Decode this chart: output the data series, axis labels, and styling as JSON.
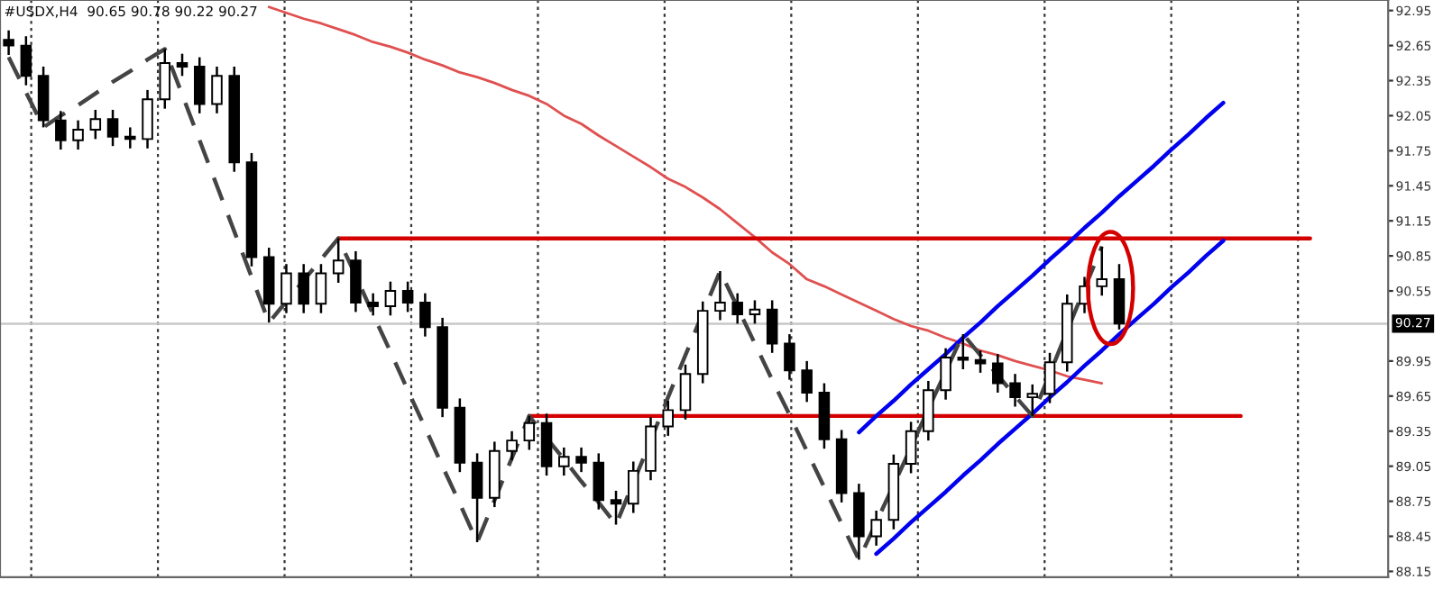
{
  "chart_data": {
    "type": "candlestick",
    "title": "#USDX,H4  90.65 90.78 90.22 90.27",
    "categories": [
      null,
      null,
      null,
      null,
      null,
      null,
      null,
      null,
      null,
      null,
      null,
      null,
      null,
      null,
      null,
      null,
      null,
      null,
      null,
      null,
      null,
      null,
      null,
      null,
      null,
      null,
      null,
      null,
      null,
      null,
      null,
      null,
      null,
      null,
      null,
      null,
      null,
      null,
      null,
      null,
      null,
      null,
      null,
      null,
      null,
      null,
      null,
      null,
      null,
      null,
      null,
      null,
      null,
      null,
      null,
      null,
      null,
      null,
      null,
      null,
      null,
      null,
      null,
      null,
      null,
      null,
      null,
      null,
      null,
      null,
      null,
      null,
      null,
      null,
      null,
      null,
      null,
      null,
      null,
      null
    ],
    "color": "#000000",
    "ohlc": [
      [
        92.7,
        92.78,
        92.57,
        92.65
      ],
      [
        92.65,
        92.73,
        92.31,
        92.39
      ],
      [
        92.39,
        92.47,
        91.95,
        92.01
      ],
      [
        92.01,
        92.09,
        91.76,
        91.84
      ],
      [
        91.84,
        92.01,
        91.76,
        91.93
      ],
      [
        91.93,
        92.1,
        91.85,
        92.02
      ],
      [
        92.02,
        92.1,
        91.79,
        91.87
      ],
      [
        91.87,
        91.95,
        91.77,
        91.85
      ],
      [
        91.85,
        92.27,
        91.77,
        92.19
      ],
      [
        92.19,
        92.62,
        92.11,
        92.5
      ],
      [
        92.5,
        92.58,
        92.39,
        92.47
      ],
      [
        92.47,
        92.55,
        92.07,
        92.15
      ],
      [
        92.15,
        92.47,
        92.07,
        92.39
      ],
      [
        92.39,
        92.47,
        91.57,
        91.65
      ],
      [
        91.65,
        91.73,
        90.76,
        90.84
      ],
      [
        90.84,
        90.92,
        90.28,
        90.44
      ],
      [
        90.44,
        90.78,
        90.36,
        90.7
      ],
      [
        90.7,
        90.78,
        90.36,
        90.44
      ],
      [
        90.44,
        90.78,
        90.36,
        90.7
      ],
      [
        90.7,
        91.0,
        90.62,
        90.81
      ],
      [
        90.81,
        90.89,
        90.37,
        90.45
      ],
      [
        90.45,
        90.53,
        90.34,
        90.42
      ],
      [
        90.42,
        90.63,
        90.34,
        90.55
      ],
      [
        90.55,
        90.63,
        90.37,
        90.45
      ],
      [
        90.45,
        90.53,
        90.16,
        90.24
      ],
      [
        90.24,
        90.32,
        89.47,
        89.55
      ],
      [
        89.55,
        89.63,
        89.0,
        89.08
      ],
      [
        89.08,
        89.16,
        88.4,
        88.78
      ],
      [
        88.78,
        89.26,
        88.7,
        89.18
      ],
      [
        89.18,
        89.35,
        89.1,
        89.27
      ],
      [
        89.27,
        89.48,
        89.19,
        89.42
      ],
      [
        89.42,
        89.5,
        88.97,
        89.05
      ],
      [
        89.05,
        89.21,
        88.97,
        89.13
      ],
      [
        89.13,
        89.21,
        89.0,
        89.08
      ],
      [
        89.08,
        89.16,
        88.68,
        88.76
      ],
      [
        88.76,
        88.84,
        88.55,
        88.73
      ],
      [
        88.73,
        89.09,
        88.65,
        89.01
      ],
      [
        89.01,
        89.47,
        88.93,
        89.39
      ],
      [
        89.39,
        89.61,
        89.31,
        89.53
      ],
      [
        89.53,
        89.92,
        89.45,
        89.84
      ],
      [
        89.84,
        90.46,
        89.76,
        90.38
      ],
      [
        90.38,
        90.72,
        90.3,
        90.45
      ],
      [
        90.45,
        90.53,
        90.27,
        90.35
      ],
      [
        90.35,
        90.47,
        90.27,
        90.39
      ],
      [
        90.39,
        90.47,
        90.02,
        90.1
      ],
      [
        90.1,
        90.18,
        89.79,
        89.87
      ],
      [
        89.87,
        89.95,
        89.6,
        89.68
      ],
      [
        89.68,
        89.76,
        89.2,
        89.28
      ],
      [
        89.28,
        89.36,
        88.74,
        88.82
      ],
      [
        88.82,
        88.9,
        88.25,
        88.45
      ],
      [
        88.45,
        88.67,
        88.37,
        88.59
      ],
      [
        88.59,
        89.15,
        88.51,
        89.07
      ],
      [
        89.07,
        89.43,
        88.99,
        89.35
      ],
      [
        89.35,
        89.78,
        89.27,
        89.7
      ],
      [
        89.7,
        90.06,
        89.62,
        89.98
      ],
      [
        89.98,
        90.18,
        89.88,
        89.96
      ],
      [
        89.96,
        90.04,
        89.85,
        89.93
      ],
      [
        89.93,
        90.01,
        89.68,
        89.76
      ],
      [
        89.76,
        89.84,
        89.56,
        89.64
      ],
      [
        89.64,
        89.75,
        89.48,
        89.67
      ],
      [
        89.67,
        90.02,
        89.59,
        89.94
      ],
      [
        89.94,
        90.52,
        89.86,
        90.44
      ],
      [
        90.44,
        90.67,
        90.36,
        90.59
      ],
      [
        90.59,
        90.93,
        90.51,
        90.65
      ],
      [
        90.65,
        90.78,
        90.22,
        90.27
      ],
      null,
      null,
      null,
      null,
      null,
      null,
      null,
      null,
      null,
      null,
      null,
      null,
      null,
      null,
      null
    ],
    "series": [
      {
        "type": "line",
        "color": "#e05050",
        "line_style": "solid",
        "values": [
          null,
          null,
          null,
          null,
          null,
          null,
          null,
          null,
          null,
          null,
          null,
          null,
          null,
          null,
          null,
          92.98,
          92.93,
          92.88,
          92.84,
          92.79,
          92.74,
          92.68,
          92.64,
          92.59,
          92.53,
          92.48,
          92.42,
          92.38,
          92.33,
          92.27,
          92.22,
          92.15,
          92.05,
          91.98,
          91.88,
          91.79,
          91.7,
          91.61,
          91.51,
          91.44,
          91.35,
          91.25,
          91.13,
          91.01,
          90.88,
          90.78,
          90.65,
          90.59,
          90.52,
          90.45,
          90.38,
          90.31,
          90.25,
          90.21,
          90.15,
          90.1,
          90.04,
          90.0,
          89.95,
          89.91,
          89.87,
          89.82,
          89.79,
          89.76,
          null,
          null,
          null,
          null,
          null,
          null,
          null,
          null,
          null,
          null,
          null,
          null,
          null,
          null,
          null,
          null
        ]
      },
      {
        "type": "line",
        "color": "#d40000",
        "line_style": "solid",
        "values": [
          null,
          null,
          null,
          null,
          null,
          null,
          null,
          null,
          null,
          null,
          null,
          null,
          null,
          null,
          null,
          null,
          null,
          null,
          null,
          91.0,
          91.0,
          91.0,
          91.0,
          91.0,
          91.0,
          91.0,
          91.0,
          91.0,
          91.0,
          91.0,
          91.0,
          91.0,
          91.0,
          91.0,
          91.0,
          91.0,
          91.0,
          91.0,
          91.0,
          91.0,
          91.0,
          91.0,
          91.0,
          91.0,
          91.0,
          91.0,
          91.0,
          91.0,
          91.0,
          91.0,
          91.0,
          91.0,
          91.0,
          91.0,
          91.0,
          91.0,
          91.0,
          91.0,
          91.0,
          91.0,
          91.0,
          91.0,
          91.0,
          91.0,
          91.0,
          91.0,
          91.0,
          91.0,
          91.0,
          91.0,
          91.0,
          91.0,
          91.0,
          91.0,
          91.0,
          91.0,
          null,
          null,
          null,
          null
        ]
      },
      {
        "type": "line",
        "color": "#d40000",
        "line_style": "solid",
        "values": [
          null,
          null,
          null,
          null,
          null,
          null,
          null,
          null,
          null,
          null,
          null,
          null,
          null,
          null,
          null,
          null,
          null,
          null,
          null,
          null,
          null,
          null,
          null,
          null,
          null,
          null,
          null,
          null,
          null,
          null,
          89.48,
          89.48,
          89.48,
          89.48,
          89.48,
          89.48,
          89.48,
          89.48,
          89.48,
          89.48,
          89.48,
          89.48,
          89.48,
          89.48,
          89.48,
          89.48,
          89.48,
          89.48,
          89.48,
          89.48,
          89.48,
          89.48,
          89.48,
          89.48,
          89.48,
          89.48,
          89.48,
          89.48,
          89.48,
          89.48,
          89.48,
          89.48,
          89.48,
          89.48,
          89.48,
          89.48,
          89.48,
          89.48,
          89.48,
          89.48,
          89.48,
          89.48,
          null,
          null,
          null,
          null,
          null,
          null,
          null,
          null
        ]
      },
      {
        "type": "line",
        "color": "#0000ee",
        "line_style": "solid",
        "values": [
          null,
          null,
          null,
          null,
          null,
          null,
          null,
          null,
          null,
          null,
          null,
          null,
          null,
          null,
          null,
          null,
          null,
          null,
          null,
          null,
          null,
          null,
          null,
          null,
          null,
          null,
          null,
          null,
          null,
          null,
          null,
          null,
          null,
          null,
          null,
          null,
          null,
          null,
          null,
          null,
          null,
          null,
          null,
          null,
          null,
          null,
          null,
          null,
          null,
          89.34,
          89.48,
          89.61,
          89.75,
          89.88,
          90.01,
          90.15,
          90.28,
          90.42,
          90.55,
          90.68,
          90.82,
          90.95,
          91.09,
          91.22,
          91.36,
          91.49,
          91.62,
          91.76,
          91.89,
          92.03,
          92.16,
          null,
          null,
          null,
          null,
          null,
          null,
          null,
          null,
          null
        ]
      },
      {
        "type": "line",
        "color": "#0000ee",
        "line_style": "solid",
        "values": [
          null,
          null,
          null,
          null,
          null,
          null,
          null,
          null,
          null,
          null,
          null,
          null,
          null,
          null,
          null,
          null,
          null,
          null,
          null,
          null,
          null,
          null,
          null,
          null,
          null,
          null,
          null,
          null,
          null,
          null,
          null,
          null,
          null,
          null,
          null,
          null,
          null,
          null,
          null,
          null,
          null,
          null,
          null,
          null,
          null,
          null,
          null,
          null,
          null,
          null,
          88.3,
          88.43,
          88.57,
          88.7,
          88.83,
          88.97,
          89.1,
          89.24,
          89.37,
          89.5,
          89.64,
          89.77,
          89.91,
          90.04,
          90.18,
          90.31,
          90.44,
          90.58,
          90.71,
          90.85,
          90.98,
          null,
          null,
          null,
          null,
          null,
          null,
          null,
          null,
          null
        ]
      },
      {
        "type": "line",
        "color": "#444444",
        "line_style": "dashed",
        "values": [
          92.55,
          92.25,
          91.95,
          92.05,
          92.14,
          92.24,
          92.34,
          92.43,
          92.53,
          92.62,
          92.23,
          91.84,
          91.45,
          91.06,
          90.67,
          90.28,
          90.46,
          90.64,
          90.82,
          91.0,
          90.68,
          90.35,
          90.03,
          89.7,
          89.38,
          89.05,
          88.73,
          88.4,
          88.76,
          89.12,
          89.48,
          89.29,
          89.11,
          88.92,
          88.74,
          88.55,
          88.91,
          89.27,
          89.64,
          90.0,
          90.36,
          90.72,
          90.41,
          90.1,
          89.79,
          89.49,
          89.18,
          88.87,
          88.56,
          88.25,
          88.57,
          88.89,
          89.21,
          89.54,
          89.86,
          90.18,
          90.0,
          89.83,
          89.65,
          89.48,
          89.84,
          90.21,
          90.57,
          90.93,
          null,
          null,
          null,
          null,
          null,
          null,
          null,
          null,
          null,
          null,
          null,
          null,
          null,
          null,
          null,
          null
        ]
      }
    ],
    "ref_lines": [
      {
        "axis": "y",
        "value": 90.27,
        "label": "90.27",
        "color": "#c8c8c8"
      }
    ],
    "ylim": [
      88.1,
      93.04
    ],
    "yticks": [
      92.95,
      92.65,
      92.35,
      92.05,
      91.75,
      91.45,
      91.15,
      90.85,
      90.55,
      89.95,
      89.65,
      89.35,
      89.05,
      88.75,
      88.45,
      88.15
    ],
    "tick_labels": "y",
    "grid": "x",
    "legend": false
  }
}
